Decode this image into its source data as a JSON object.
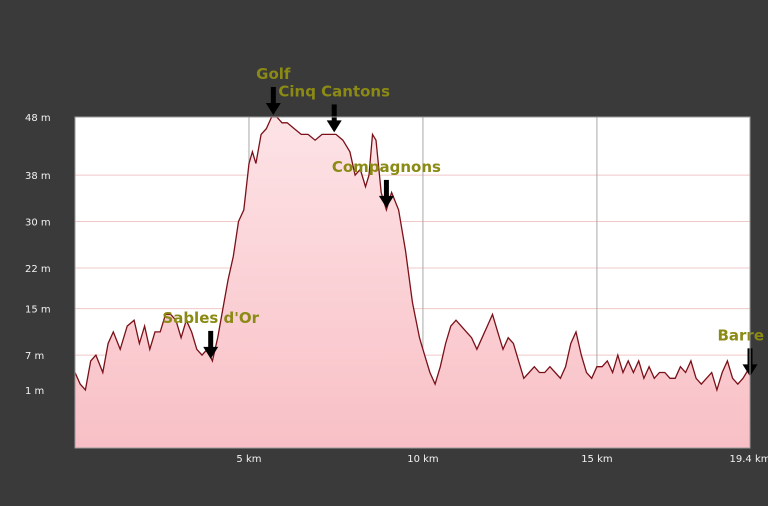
{
  "chart_data": {
    "type": "area",
    "title": "",
    "xlabel": "",
    "ylabel": "",
    "xlim": [
      0,
      19.4
    ],
    "ylim": [
      -9,
      48
    ],
    "grid": true,
    "fill_color": "#f8c0c6",
    "line_color": "#7a1018",
    "y_ticks": [
      {
        "value": 48,
        "label": "48 m"
      },
      {
        "value": 38,
        "label": "38 m"
      },
      {
        "value": 30,
        "label": "30 m"
      },
      {
        "value": 22,
        "label": "22 m"
      },
      {
        "value": 15,
        "label": "15 m"
      },
      {
        "value": 7,
        "label": "7 m"
      },
      {
        "value": 1,
        "label": "1 m"
      }
    ],
    "x_ticks": [
      {
        "value": 5,
        "label": "5 km"
      },
      {
        "value": 10,
        "label": "10 km"
      },
      {
        "value": 15,
        "label": "15 km"
      },
      {
        "value": 19.4,
        "label": "19.4 km"
      }
    ],
    "x": [
      0,
      0.15,
      0.3,
      0.45,
      0.6,
      0.8,
      0.95,
      1.1,
      1.3,
      1.5,
      1.7,
      1.85,
      2.0,
      2.15,
      2.3,
      2.45,
      2.6,
      2.75,
      2.9,
      3.05,
      3.2,
      3.35,
      3.5,
      3.65,
      3.8,
      3.95,
      4.1,
      4.25,
      4.4,
      4.55,
      4.7,
      4.85,
      5.0,
      5.1,
      5.2,
      5.35,
      5.5,
      5.65,
      5.8,
      5.95,
      6.1,
      6.3,
      6.5,
      6.7,
      6.9,
      7.1,
      7.3,
      7.5,
      7.7,
      7.9,
      8.05,
      8.2,
      8.35,
      8.45,
      8.55,
      8.65,
      8.8,
      8.95,
      9.1,
      9.3,
      9.5,
      9.7,
      9.9,
      10.0,
      10.1,
      10.2,
      10.35,
      10.5,
      10.65,
      10.8,
      10.95,
      11.1,
      11.25,
      11.4,
      11.55,
      11.7,
      11.85,
      12.0,
      12.15,
      12.3,
      12.45,
      12.6,
      12.75,
      12.9,
      13.05,
      13.2,
      13.35,
      13.5,
      13.65,
      13.8,
      13.95,
      14.1,
      14.25,
      14.4,
      14.55,
      14.7,
      14.85,
      15.0,
      15.15,
      15.3,
      15.45,
      15.6,
      15.75,
      15.9,
      16.05,
      16.2,
      16.35,
      16.5,
      16.65,
      16.8,
      16.95,
      17.1,
      17.25,
      17.4,
      17.55,
      17.7,
      17.85,
      18.0,
      18.15,
      18.3,
      18.45,
      18.6,
      18.75,
      18.9,
      19.05,
      19.2,
      19.4
    ],
    "y": [
      4,
      2,
      1,
      6,
      7,
      4,
      9,
      11,
      8,
      12,
      13,
      9,
      12,
      8,
      11,
      11,
      14,
      14,
      13,
      10,
      13,
      11,
      8,
      7,
      8,
      6,
      10,
      15,
      20,
      24,
      30,
      32,
      40,
      42,
      40,
      45,
      46,
      48,
      48,
      47,
      47,
      46,
      45,
      45,
      44,
      45,
      45,
      45,
      44,
      42,
      38,
      39,
      36,
      38,
      45,
      44,
      35,
      32,
      35,
      32,
      25,
      16,
      10,
      8,
      6,
      4,
      2,
      5,
      9,
      12,
      13,
      12,
      11,
      10,
      8,
      10,
      12,
      14,
      11,
      8,
      10,
      9,
      6,
      3,
      4,
      5,
      4,
      4,
      5,
      4,
      3,
      5,
      9,
      11,
      7,
      4,
      3,
      5,
      5,
      6,
      4,
      7,
      4,
      6,
      4,
      6,
      3,
      5,
      3,
      4,
      4,
      3,
      3,
      5,
      4,
      6,
      3,
      2,
      3,
      4,
      1,
      4,
      6,
      3,
      2,
      3,
      5
    ],
    "annotations": [
      {
        "label": "Golf",
        "x": 5.7,
        "y": 48
      },
      {
        "label": "Cinq Cantons",
        "x": 7.45,
        "y": 45
      },
      {
        "label": "Compagnons",
        "x": 8.95,
        "y": 32
      },
      {
        "label": "Sables d'Or",
        "x": 3.9,
        "y": 6
      },
      {
        "label": "Barre",
        "x": 19.4,
        "y": 3
      }
    ]
  }
}
